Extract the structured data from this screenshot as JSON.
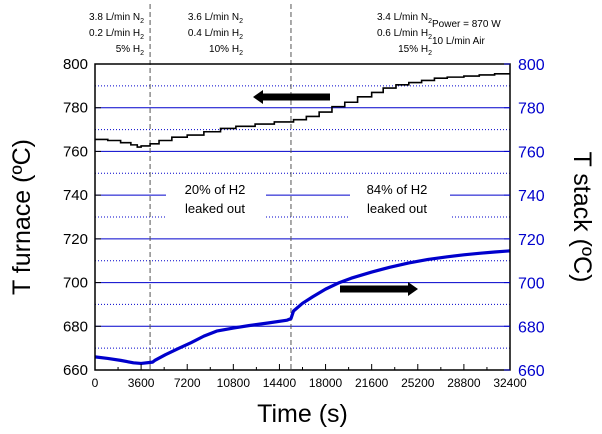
{
  "chart_data": {
    "type": "line",
    "x": {
      "label": "Time (s)",
      "range": [
        0,
        32400
      ],
      "ticks": [
        0,
        3600,
        7200,
        10800,
        14400,
        18000,
        21600,
        25200,
        28800,
        32400
      ],
      "tick_labels": [
        "0",
        "3600",
        "7200",
        "10800",
        "14400",
        "18000",
        "21600",
        "25200",
        "28800",
        "32400"
      ]
    },
    "y_left": {
      "label": "T furnace (ºC)",
      "range": [
        660,
        800
      ],
      "ticks": [
        660,
        680,
        700,
        720,
        740,
        760,
        780,
        800
      ],
      "tick_labels": [
        "660",
        "680",
        "700",
        "720",
        "740",
        "760",
        "780",
        "800"
      ]
    },
    "y_right": {
      "label": "T stack (ºC)",
      "range": [
        660,
        800
      ],
      "ticks": [
        660,
        680,
        700,
        720,
        740,
        760,
        780,
        800
      ],
      "tick_labels": [
        "660",
        "680",
        "700",
        "720",
        "740",
        "760",
        "780",
        "800"
      ],
      "color": "#0000cc"
    },
    "grid": {
      "solid_lines": [
        680,
        700,
        720,
        740,
        760,
        780
      ],
      "dotted_lines": [
        670,
        690,
        710,
        730,
        750,
        770,
        790
      ],
      "color": "#0000cc"
    },
    "series": [
      {
        "axis": "left",
        "color": "#000000",
        "style": "step",
        "points": [
          [
            0,
            765.5
          ],
          [
            1000,
            765
          ],
          [
            2000,
            764
          ],
          [
            2800,
            763
          ],
          [
            3300,
            762
          ],
          [
            3600,
            762.5
          ],
          [
            4300,
            763.5
          ],
          [
            5000,
            765
          ],
          [
            6000,
            766.5
          ],
          [
            7200,
            767.5
          ],
          [
            8500,
            769
          ],
          [
            9800,
            770.5
          ],
          [
            11000,
            771.5
          ],
          [
            12500,
            772.5
          ],
          [
            14000,
            773.5
          ],
          [
            15500,
            774.5
          ],
          [
            16500,
            776
          ],
          [
            17500,
            778
          ],
          [
            18500,
            780.5
          ],
          [
            19500,
            782.5
          ],
          [
            20500,
            785
          ],
          [
            21600,
            787
          ],
          [
            22500,
            789
          ],
          [
            23500,
            790.5
          ],
          [
            24500,
            791.5
          ],
          [
            25500,
            792.5
          ],
          [
            26500,
            793.5
          ],
          [
            27500,
            794
          ],
          [
            28800,
            794.5
          ],
          [
            30000,
            795
          ],
          [
            31200,
            795.5
          ],
          [
            32400,
            795.5
          ]
        ]
      },
      {
        "axis": "right",
        "color": "#0000cc",
        "style": "line",
        "points": [
          [
            0,
            666
          ],
          [
            1000,
            665.3
          ],
          [
            2000,
            664.4
          ],
          [
            3000,
            663.3
          ],
          [
            3600,
            663
          ],
          [
            4500,
            663.6
          ],
          [
            4700,
            664.5
          ],
          [
            5500,
            667
          ],
          [
            6500,
            669.8
          ],
          [
            7500,
            672.5
          ],
          [
            8500,
            675.5
          ],
          [
            9500,
            677.8
          ],
          [
            10800,
            679.2
          ],
          [
            12000,
            680.3
          ],
          [
            13500,
            681.5
          ],
          [
            15000,
            682.8
          ],
          [
            15300,
            683.5
          ],
          [
            15500,
            687
          ],
          [
            16200,
            690.5
          ],
          [
            17000,
            693.5
          ],
          [
            18000,
            697
          ],
          [
            19000,
            699.8
          ],
          [
            20000,
            702
          ],
          [
            21600,
            704.8
          ],
          [
            23000,
            707
          ],
          [
            24500,
            709
          ],
          [
            26000,
            710.6
          ],
          [
            27500,
            711.8
          ],
          [
            28800,
            712.7
          ],
          [
            30000,
            713.4
          ],
          [
            31200,
            714
          ],
          [
            32400,
            714.5
          ]
        ]
      }
    ],
    "vlines": [
      4300,
      15300
    ],
    "header_columns": [
      {
        "anchor": "end",
        "at_x": 4300,
        "row1": [
          "3.8 L/min N",
          "2",
          ""
        ],
        "row2": [
          "0.2 L/min H",
          "2",
          ""
        ],
        "row3": [
          "5% H",
          "2",
          ""
        ]
      },
      {
        "anchor": "end",
        "at_x": 15300,
        "row1": [
          "3.6 L/min N",
          "2",
          ""
        ],
        "row2": [
          "0.4 L/min H",
          "2",
          ""
        ],
        "row3": [
          "10% H",
          "2",
          ""
        ]
      },
      {
        "anchor": "end",
        "at_x": 26000,
        "row1": [
          "3.4 L/min N",
          "2",
          ""
        ],
        "row2": [
          "0.6 L/min H",
          "2",
          ""
        ],
        "row3": [
          "15% H",
          "2",
          ""
        ]
      }
    ],
    "annotations": {
      "power": "Power = 870 W",
      "air": "10 L/min Air",
      "leak1_line1": "20% of H2",
      "leak1_line2": "leaked out",
      "leak2_line1": "84% of H2",
      "leak2_line2": "leaked out"
    }
  }
}
